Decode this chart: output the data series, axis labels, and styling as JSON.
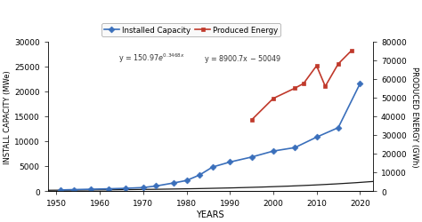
{
  "title": "",
  "xlabel": "YEARS",
  "ylabel_left": "INSTALL CAPACITY (MWe)",
  "ylabel_right": "PRODUCED ENERGY (GWh)",
  "legend_entries": [
    "Installed Capacity",
    "Produced Energy"
  ],
  "blue_color": "#3a6fbb",
  "red_color": "#c0392b",
  "fit_color": "#1a1a1a",
  "years_capacity": [
    1951,
    1954,
    1958,
    1962,
    1966,
    1970,
    1973,
    1977,
    1980,
    1983,
    1986,
    1990,
    1995,
    2000,
    2005,
    2010,
    2015,
    2020
  ],
  "capacity_values": [
    200,
    270,
    350,
    430,
    530,
    680,
    1000,
    1600,
    2100,
    3200,
    4800,
    5800,
    6800,
    8000,
    8700,
    10800,
    12700,
    21500
  ],
  "years_energy": [
    1995,
    2000,
    2005,
    2007,
    2010,
    2012,
    2015,
    2018
  ],
  "energy_values": [
    38000,
    49500,
    55000,
    57500,
    67000,
    56000,
    68000,
    75000
  ],
  "exp_eq_label": "y = 150.97e^{0.3468x}",
  "lin_eq_label": "y = 8900.7x - 50049",
  "xlim": [
    1948,
    2023
  ],
  "ylim_left": [
    0,
    30000
  ],
  "ylim_right": [
    0,
    80000
  ],
  "xticks": [
    1950,
    1960,
    1970,
    1980,
    1990,
    2000,
    2010,
    2020
  ],
  "yticks_left": [
    0,
    5000,
    10000,
    15000,
    20000,
    25000,
    30000
  ],
  "yticks_right": [
    0,
    10000,
    20000,
    30000,
    40000,
    50000,
    60000,
    70000,
    80000
  ],
  "background_color": "#ffffff",
  "figsize": [
    4.74,
    2.51
  ],
  "dpi": 100
}
